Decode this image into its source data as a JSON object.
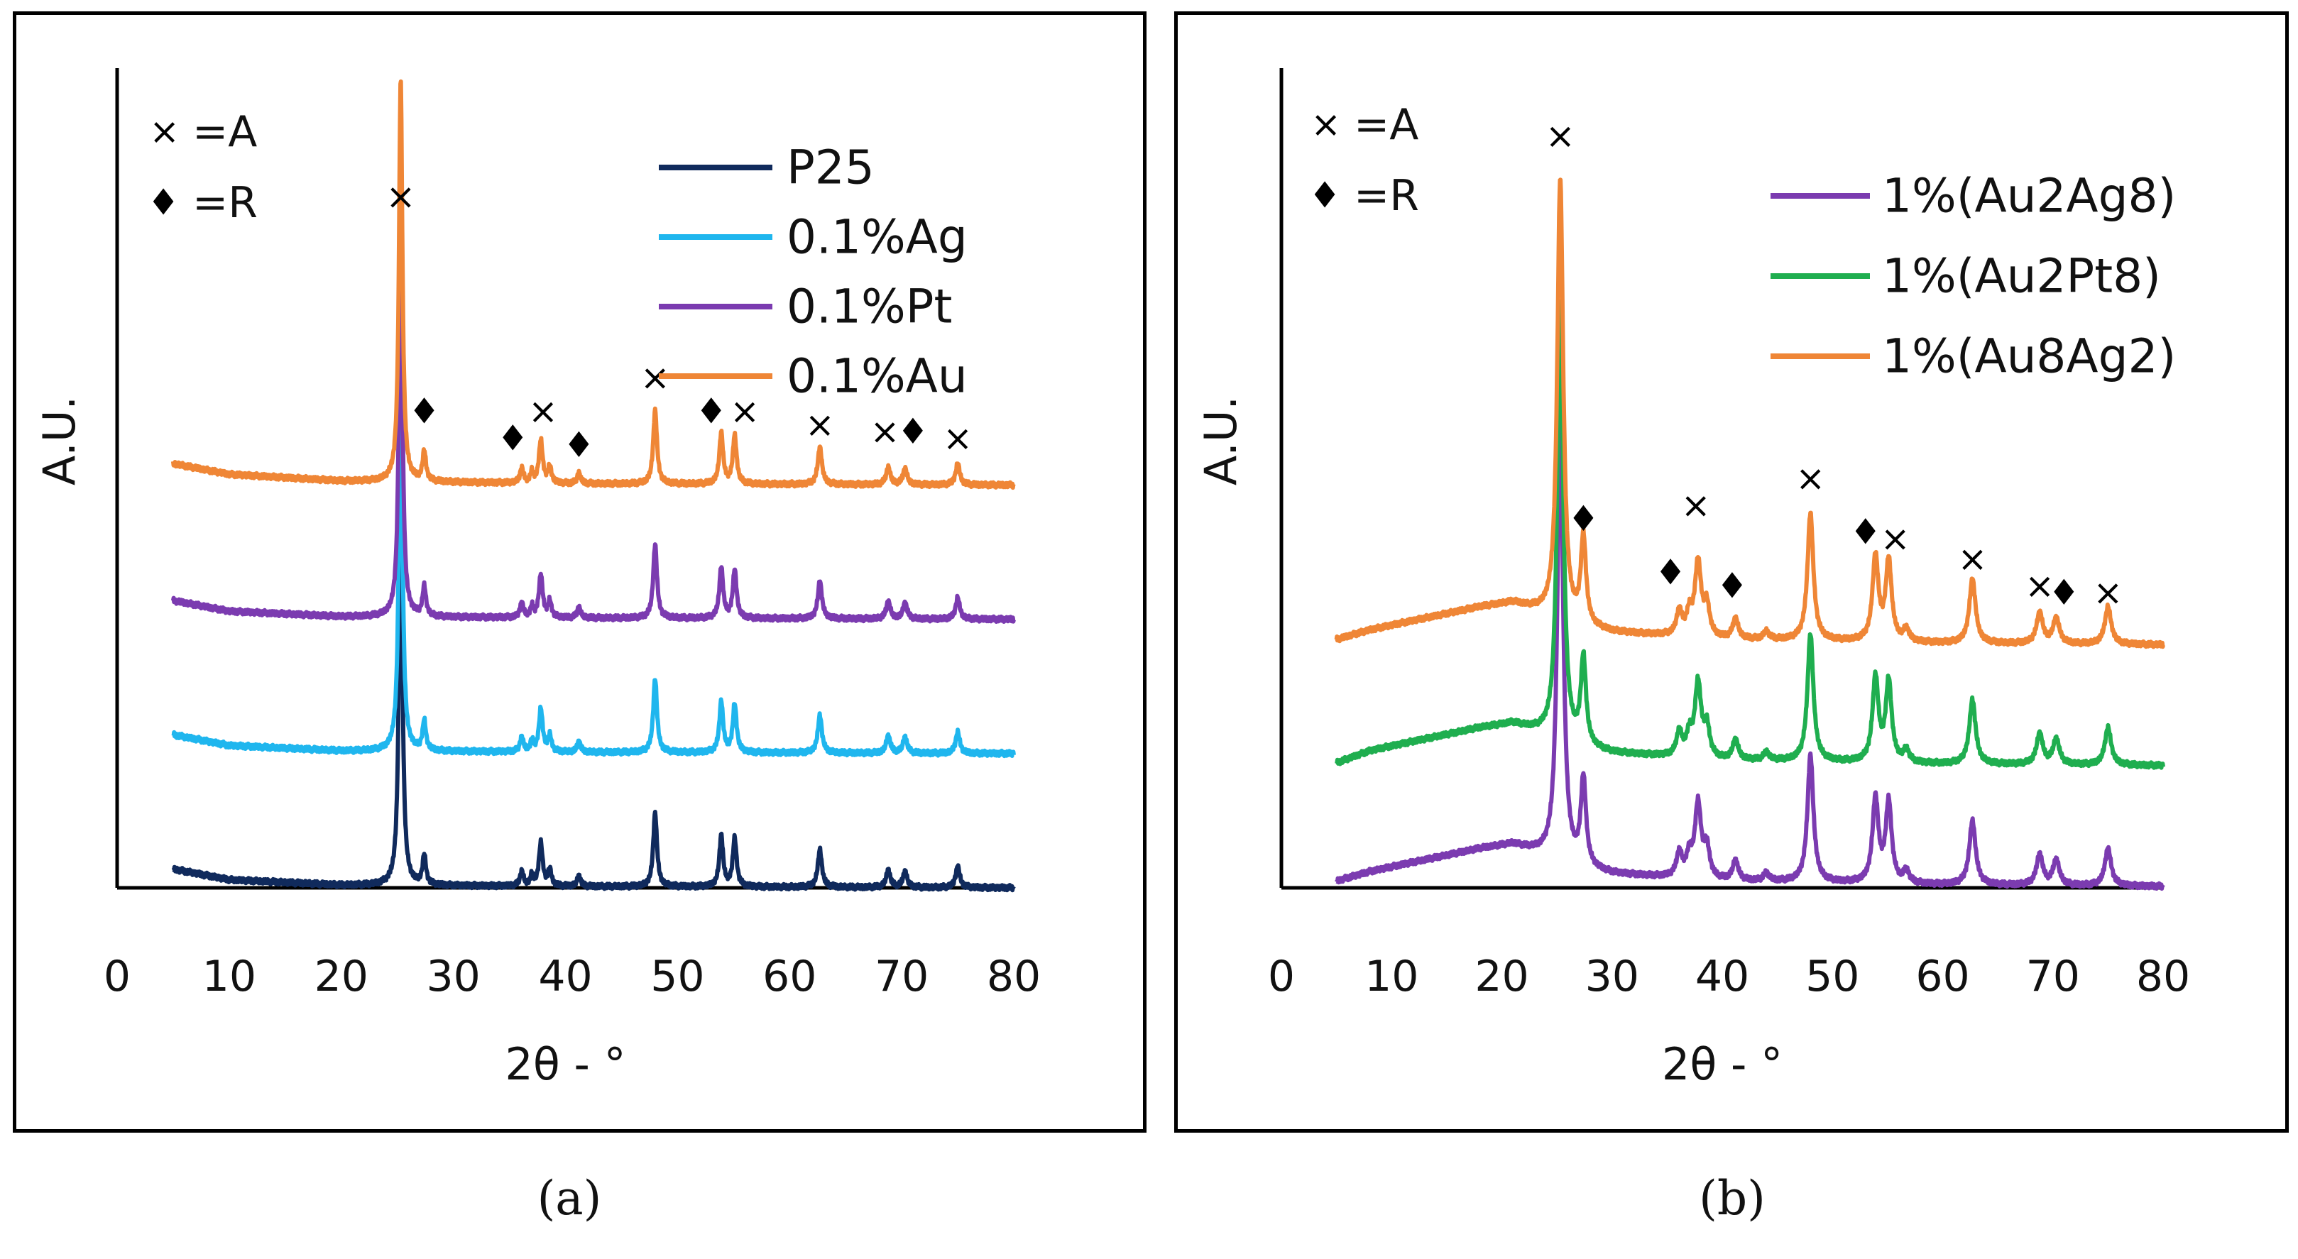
{
  "colors": {
    "P25": "#102a5c",
    "0.1%Ag": "#1fb6ee",
    "0.1%Pt": "#7b3bb0",
    "0.1%Au": "#ef8636",
    "1%(Au2Ag8)": "#7b3bb0",
    "1%(Au2Pt8)": "#1fae4f",
    "1%(Au8Ag2)": "#ef8636"
  },
  "captions": {
    "a": "(a)",
    "b": "(b)"
  },
  "chart_data": [
    {
      "type": "line",
      "panel": "a",
      "xlabel": "2θ - °",
      "ylabel": "A.U.",
      "xlim": [
        0,
        80
      ],
      "ylim": [
        0,
        60
      ],
      "xticks": [
        "0",
        "10",
        "20",
        "30",
        "40",
        "50",
        "60",
        "70",
        "80"
      ],
      "grid": false,
      "legend_position": "top-right",
      "marker_key": [
        {
          "symbol": "×",
          "text": "=A"
        },
        {
          "symbol": "♦",
          "text": "=R"
        }
      ],
      "series": [
        {
          "name": "P25",
          "offset": 0,
          "background": [
            [
              5,
              1.4
            ],
            [
              10,
              0.6
            ],
            [
              20,
              0.2
            ],
            [
              40,
              0.1
            ],
            [
              80,
              0.0
            ]
          ]
        },
        {
          "name": "0.1%Ag",
          "offset": 10,
          "background": [
            [
              5,
              1.4
            ],
            [
              10,
              0.6
            ],
            [
              20,
              0.2
            ],
            [
              40,
              0.1
            ],
            [
              80,
              0.0
            ]
          ]
        },
        {
          "name": "0.1%Pt",
          "offset": 20,
          "background": [
            [
              5,
              1.4
            ],
            [
              10,
              0.6
            ],
            [
              20,
              0.2
            ],
            [
              40,
              0.1
            ],
            [
              80,
              0.0
            ]
          ]
        },
        {
          "name": "0.1%Au",
          "offset": 30,
          "background": [
            [
              5,
              1.6
            ],
            [
              10,
              0.8
            ],
            [
              20,
              0.3
            ],
            [
              40,
              0.1
            ],
            [
              80,
              0.0
            ]
          ]
        }
      ],
      "peaks": [
        {
          "x": 25.3,
          "h": 30,
          "w": 0.18
        },
        {
          "x": 27.4,
          "h": 2.2,
          "w": 0.18
        },
        {
          "x": 36.1,
          "h": 1.1,
          "w": 0.18
        },
        {
          "x": 37.0,
          "h": 0.8,
          "w": 0.15
        },
        {
          "x": 37.8,
          "h": 3.2,
          "w": 0.2
        },
        {
          "x": 38.6,
          "h": 1.2,
          "w": 0.18
        },
        {
          "x": 41.2,
          "h": 0.8,
          "w": 0.18
        },
        {
          "x": 48.0,
          "h": 5.5,
          "w": 0.2
        },
        {
          "x": 53.9,
          "h": 3.8,
          "w": 0.2
        },
        {
          "x": 55.1,
          "h": 3.6,
          "w": 0.2
        },
        {
          "x": 62.7,
          "h": 2.8,
          "w": 0.22
        },
        {
          "x": 68.8,
          "h": 1.3,
          "w": 0.22
        },
        {
          "x": 70.3,
          "h": 1.2,
          "w": 0.22
        },
        {
          "x": 75.0,
          "h": 1.6,
          "w": 0.22
        }
      ],
      "annotations": [
        {
          "symbol": "×",
          "x": 25.3,
          "y": 51.5
        },
        {
          "symbol": "♦",
          "x": 27.4,
          "y": 35.5
        },
        {
          "symbol": "♦",
          "x": 35.3,
          "y": 33.5
        },
        {
          "symbol": "×",
          "x": 38.0,
          "y": 35.5
        },
        {
          "symbol": "♦",
          "x": 41.2,
          "y": 33.0
        },
        {
          "symbol": "×",
          "x": 48.0,
          "y": 38.0
        },
        {
          "symbol": "♦",
          "x": 53.0,
          "y": 35.5
        },
        {
          "symbol": "×",
          "x": 56.0,
          "y": 35.5
        },
        {
          "symbol": "×",
          "x": 62.7,
          "y": 34.5
        },
        {
          "symbol": "×",
          "x": 68.5,
          "y": 34.0
        },
        {
          "symbol": "♦",
          "x": 71.0,
          "y": 34.0
        },
        {
          "symbol": "×",
          "x": 75.0,
          "y": 33.5
        }
      ]
    },
    {
      "type": "line",
      "panel": "b",
      "xlabel": "2θ - °",
      "ylabel": "A.U.",
      "xlim": [
        0,
        80
      ],
      "ylim": [
        0,
        60
      ],
      "xticks": [
        "0",
        "10",
        "20",
        "30",
        "40",
        "50",
        "60",
        "70",
        "80"
      ],
      "grid": false,
      "legend_position": "top-right",
      "marker_key": [
        {
          "symbol": "×",
          "text": "=A"
        },
        {
          "symbol": "♦",
          "text": "=R"
        }
      ],
      "series": [
        {
          "name": "1%(Au2Ag8)",
          "offset": 0,
          "background": [
            [
              5,
              0.5
            ],
            [
              8,
              1.2
            ],
            [
              12,
              1.9
            ],
            [
              15,
              2.4
            ],
            [
              18,
              2.9
            ],
            [
              21,
              3.2
            ],
            [
              23,
              2.6
            ],
            [
              26,
              1.5
            ],
            [
              30,
              1.0
            ],
            [
              40,
              0.5
            ],
            [
              60,
              0.2
            ],
            [
              80,
              0.1
            ]
          ]
        },
        {
          "name": "1%(Au2Pt8)",
          "offset": 9,
          "background": [
            [
              5,
              0.3
            ],
            [
              8,
              1.2
            ],
            [
              12,
              1.9
            ],
            [
              15,
              2.4
            ],
            [
              18,
              2.9
            ],
            [
              21,
              3.2
            ],
            [
              23,
              2.6
            ],
            [
              26,
              1.5
            ],
            [
              30,
              1.0
            ],
            [
              40,
              0.5
            ],
            [
              60,
              0.2
            ],
            [
              80,
              0.1
            ]
          ]
        },
        {
          "name": "1%(Au8Ag2)",
          "offset": 18,
          "background": [
            [
              5,
              0.5
            ],
            [
              8,
              1.2
            ],
            [
              12,
              1.9
            ],
            [
              15,
              2.4
            ],
            [
              18,
              2.9
            ],
            [
              21,
              3.2
            ],
            [
              23,
              2.6
            ],
            [
              26,
              1.5
            ],
            [
              30,
              1.0
            ],
            [
              40,
              0.5
            ],
            [
              60,
              0.2
            ],
            [
              80,
              0.1
            ]
          ]
        }
      ],
      "peaks": [
        {
          "x": 25.3,
          "h": 33,
          "w": 0.32
        },
        {
          "x": 27.4,
          "h": 6.5,
          "w": 0.28
        },
        {
          "x": 36.1,
          "h": 1.8,
          "w": 0.3
        },
        {
          "x": 37.0,
          "h": 1.5,
          "w": 0.3
        },
        {
          "x": 37.8,
          "h": 5.5,
          "w": 0.34
        },
        {
          "x": 38.6,
          "h": 2.2,
          "w": 0.3
        },
        {
          "x": 41.2,
          "h": 1.5,
          "w": 0.3
        },
        {
          "x": 44.0,
          "h": 0.6,
          "w": 0.3
        },
        {
          "x": 48.0,
          "h": 9.5,
          "w": 0.32
        },
        {
          "x": 53.9,
          "h": 6.3,
          "w": 0.32
        },
        {
          "x": 55.1,
          "h": 6.0,
          "w": 0.32
        },
        {
          "x": 56.7,
          "h": 0.9,
          "w": 0.3
        },
        {
          "x": 62.7,
          "h": 4.8,
          "w": 0.34
        },
        {
          "x": 68.8,
          "h": 2.3,
          "w": 0.34
        },
        {
          "x": 70.3,
          "h": 1.9,
          "w": 0.34
        },
        {
          "x": 75.0,
          "h": 2.8,
          "w": 0.34
        }
      ],
      "annotations": [
        {
          "symbol": "×",
          "x": 25.3,
          "y": 56.0
        },
        {
          "symbol": "♦",
          "x": 27.4,
          "y": 27.5
        },
        {
          "symbol": "♦",
          "x": 35.3,
          "y": 23.5
        },
        {
          "symbol": "×",
          "x": 37.6,
          "y": 28.5
        },
        {
          "symbol": "♦",
          "x": 40.9,
          "y": 22.5
        },
        {
          "symbol": "×",
          "x": 48.0,
          "y": 30.5
        },
        {
          "symbol": "♦",
          "x": 53.0,
          "y": 26.5
        },
        {
          "symbol": "×",
          "x": 55.7,
          "y": 26.0
        },
        {
          "symbol": "×",
          "x": 62.7,
          "y": 24.5
        },
        {
          "symbol": "×",
          "x": 68.8,
          "y": 22.5
        },
        {
          "symbol": "♦",
          "x": 71.0,
          "y": 22.0
        },
        {
          "symbol": "×",
          "x": 75.0,
          "y": 22.0
        }
      ]
    }
  ]
}
